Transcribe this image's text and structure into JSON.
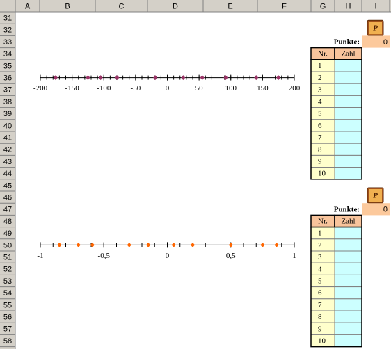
{
  "sheet": {
    "column_headers": [
      "A",
      "B",
      "C",
      "D",
      "E",
      "F",
      "G",
      "H",
      "I"
    ],
    "row_headers": [
      31,
      32,
      33,
      34,
      35,
      36,
      37,
      38,
      39,
      40,
      41,
      42,
      43,
      44,
      45,
      46,
      47,
      48,
      49,
      50,
      51,
      52,
      53,
      54,
      55,
      56,
      57,
      58
    ]
  },
  "chart_data": [
    {
      "type": "number-line",
      "xlim": [
        -200,
        200
      ],
      "xticks": [
        -200,
        -150,
        -100,
        -50,
        0,
        50,
        100,
        150,
        200
      ],
      "minor_tick_step": 10,
      "color": "#993366",
      "values": [
        -176,
        -125,
        -105,
        -79,
        -19,
        25,
        55,
        92,
        140,
        175
      ]
    },
    {
      "type": "number-line",
      "xlim": [
        -1,
        1
      ],
      "xticks": [
        -1,
        {
          "value": -0.5,
          "label": "-0,5"
        },
        0,
        {
          "value": 0.5,
          "label": "0,5"
        },
        1
      ],
      "minor_tick_step": 0.1,
      "color": "#ff6600",
      "values": [
        -0.85,
        -0.7,
        -0.59,
        -0.3,
        -0.15,
        0.05,
        0.2,
        0.5,
        0.75,
        0.86
      ]
    }
  ],
  "quizzes": [
    {
      "button": "P",
      "score_label": "Punkte:",
      "score": 0,
      "headers": [
        "Nr.",
        "Zahl"
      ],
      "rows": [
        1,
        2,
        3,
        4,
        5,
        6,
        7,
        8,
        9,
        10
      ]
    },
    {
      "button": "P",
      "score_label": "Punkte:",
      "score": 0,
      "headers": [
        "Nr.",
        "Zahl"
      ],
      "rows": [
        1,
        2,
        3,
        4,
        5,
        6,
        7,
        8,
        9,
        10
      ]
    }
  ]
}
